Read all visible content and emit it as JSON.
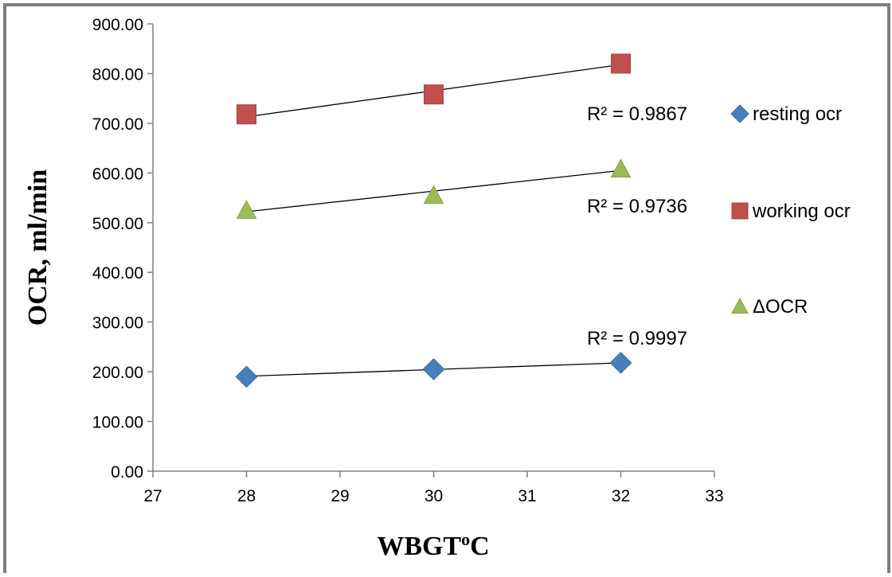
{
  "chart_data": {
    "type": "scatter",
    "xlabel": "WBGToC",
    "ylabel": "OCR, ml/min",
    "xlim": [
      27,
      33
    ],
    "ylim": [
      0,
      900
    ],
    "x_ticks": [
      "27",
      "28",
      "29",
      "30",
      "31",
      "32",
      "33"
    ],
    "y_ticks": [
      "0.00",
      "100.00",
      "200.00",
      "300.00",
      "400.00",
      "500.00",
      "600.00",
      "700.00",
      "800.00",
      "900.00"
    ],
    "grid": false,
    "legend_position": "right",
    "series": [
      {
        "name": "resting ocr",
        "marker": "diamond",
        "color": "#4a7ebb",
        "points": [
          {
            "x": 28,
            "y": 190
          },
          {
            "x": 30,
            "y": 205
          },
          {
            "x": 32,
            "y": 218
          }
        ],
        "trendline": {
          "y_start": 191,
          "y_end": 218
        },
        "r2_text": "R² = 0.9997"
      },
      {
        "name": "working ocr",
        "marker": "square",
        "color": "#c0504d",
        "points": [
          {
            "x": 28,
            "y": 718
          },
          {
            "x": 30,
            "y": 758
          },
          {
            "x": 32,
            "y": 820
          }
        ],
        "trendline": {
          "y_start": 713,
          "y_end": 818
        },
        "r2_text": "R² = 0.9867"
      },
      {
        "name": "ΔOCR",
        "marker": "triangle",
        "color": "#9bbb59",
        "points": [
          {
            "x": 28,
            "y": 525
          },
          {
            "x": 30,
            "y": 555
          },
          {
            "x": 32,
            "y": 608
          }
        ],
        "trendline": {
          "y_start": 522,
          "y_end": 605
        },
        "r2_text": "R² = 0.9736"
      }
    ]
  }
}
